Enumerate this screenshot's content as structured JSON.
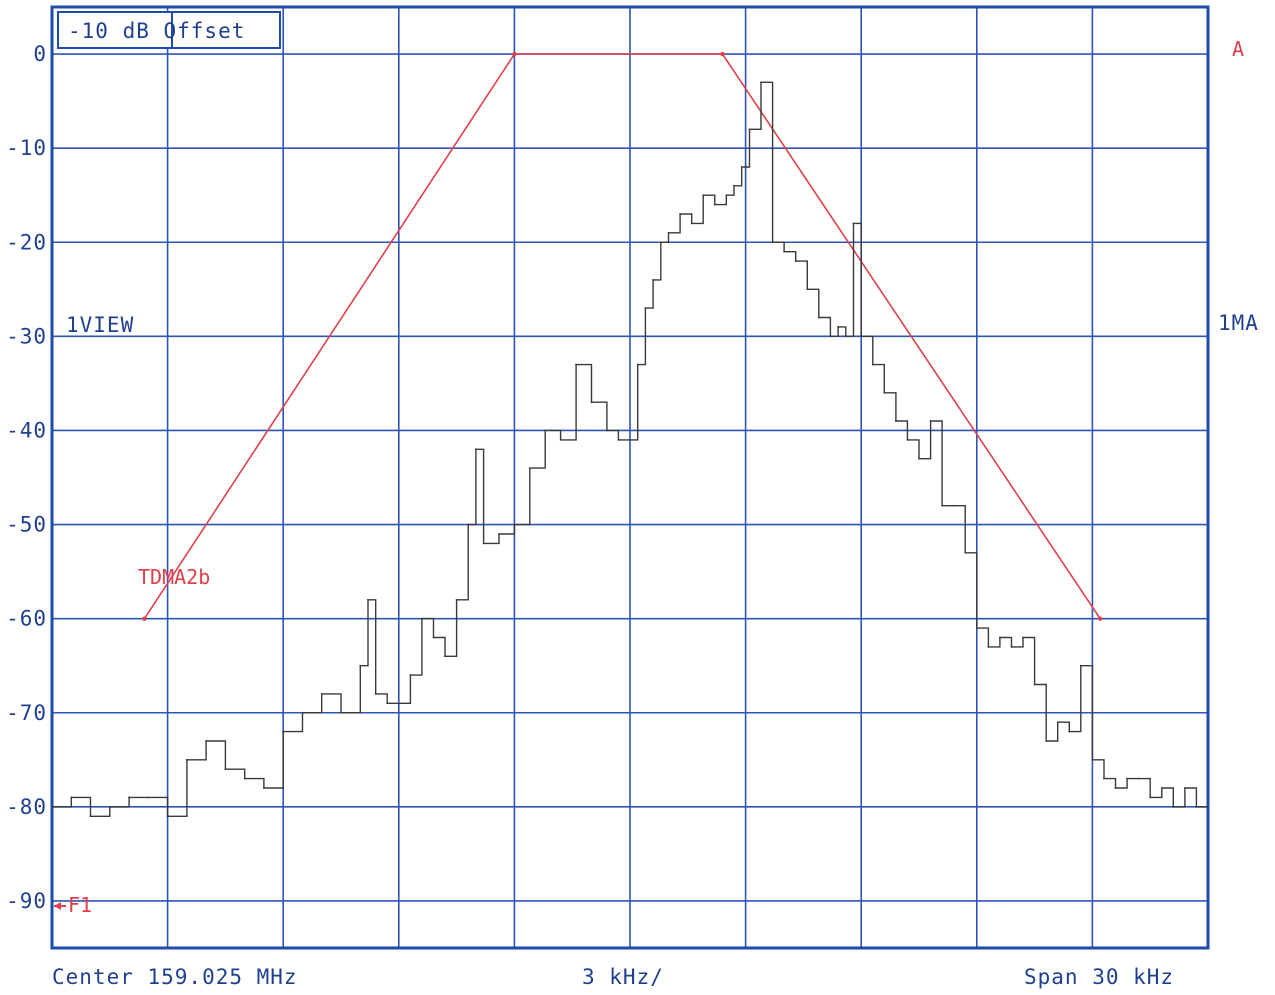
{
  "chart_data": {
    "type": "line",
    "ylim": [
      -95,
      5
    ],
    "xlim": [
      -15,
      15
    ],
    "y_ticks": [
      "0",
      "-10",
      "-20",
      "-30",
      "-40",
      "-50",
      "-60",
      "-70",
      "-80",
      "-90"
    ],
    "y_tick_values": [
      0,
      -10,
      -20,
      -30,
      -40,
      -50,
      -60,
      -70,
      -80,
      -90
    ],
    "x_grid_kHz": [
      -15,
      -12,
      -9,
      -6,
      -3,
      0,
      3,
      6,
      9,
      12,
      15
    ],
    "offset_box": "-10 dB Offset",
    "left_label": "1VIEW",
    "right_label": "1MA",
    "corner_label": "A",
    "center_label": "Center 159.025 MHz",
    "scale_label": "3 kHz/",
    "span_label": "Span 30 kHz",
    "marker_label": "F1",
    "grid": true,
    "series": [
      {
        "name": "TDMA2b",
        "color": "#e0404a",
        "x_kHz": [
          -12.6,
          -3.0,
          2.4,
          12.2
        ],
        "y": [
          -60,
          0,
          0,
          -60
        ]
      },
      {
        "color": "#3a3a3a",
        "x_kHz": [
          -15.0,
          -14.5,
          -14.0,
          -13.5,
          -13.0,
          -12.5,
          -12.0,
          -11.5,
          -11.0,
          -10.5,
          -10.0,
          -9.5,
          -9.0,
          -8.5,
          -8.0,
          -7.5,
          -7.0,
          -6.8,
          -6.6,
          -6.3,
          -6.0,
          -5.7,
          -5.4,
          -5.1,
          -4.8,
          -4.5,
          -4.2,
          -4.0,
          -3.8,
          -3.4,
          -3.0,
          -2.6,
          -2.2,
          -1.8,
          -1.4,
          -1.0,
          -0.6,
          -0.3,
          0.0,
          0.2,
          0.4,
          0.6,
          0.8,
          1.0,
          1.3,
          1.6,
          1.9,
          2.2,
          2.5,
          2.7,
          2.9,
          3.1,
          3.4,
          3.7,
          4.0,
          4.3,
          4.6,
          4.9,
          5.2,
          5.4,
          5.6,
          5.8,
          6.0,
          6.3,
          6.6,
          6.9,
          7.2,
          7.5,
          7.8,
          8.1,
          8.4,
          8.7,
          9.0,
          9.3,
          9.6,
          9.9,
          10.2,
          10.5,
          10.8,
          11.1,
          11.4,
          11.7,
          12.0,
          12.3,
          12.6,
          12.9,
          13.2,
          13.5,
          13.8,
          14.1,
          14.4,
          14.7,
          15.0
        ],
        "y": [
          -80,
          -79,
          -81,
          -80,
          -79,
          -79,
          -81,
          -75,
          -73,
          -76,
          -77,
          -78,
          -72,
          -70,
          -68,
          -70,
          -65,
          -58,
          -68,
          -69,
          -69,
          -66,
          -60,
          -62,
          -64,
          -58,
          -50,
          -42,
          -52,
          -51,
          -50,
          -44,
          -40,
          -41,
          -33,
          -37,
          -40,
          -41,
          -41,
          -33,
          -27,
          -24,
          -20,
          -19,
          -17,
          -18,
          -15,
          -16,
          -15,
          -14,
          -12,
          -8,
          -3,
          -20,
          -21,
          -22,
          -25,
          -28,
          -30,
          -29,
          -30,
          -18,
          -30,
          -33,
          -36,
          -39,
          -41,
          -43,
          -39,
          -48,
          -48,
          -53,
          -61,
          -63,
          -62,
          -63,
          -62,
          -67,
          -73,
          -71,
          -72,
          -65,
          -75,
          -77,
          -78,
          -77,
          -77,
          -79,
          -78,
          -80,
          -78,
          -80,
          -80
        ]
      }
    ]
  }
}
